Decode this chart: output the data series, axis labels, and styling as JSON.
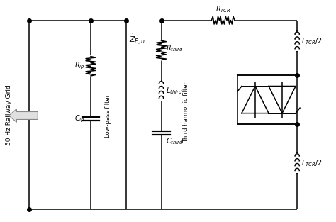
{
  "background_color": "#ffffff",
  "line_color": "#000000",
  "text_color": "#000000",
  "fig_width": 4.74,
  "fig_height": 3.13,
  "dpi": 100,
  "labels": {
    "left_axis": "50 Hz Railway Grid",
    "lowpass_filter": "Low-pass filter",
    "third_harmonic": "Third harmonic filter"
  }
}
